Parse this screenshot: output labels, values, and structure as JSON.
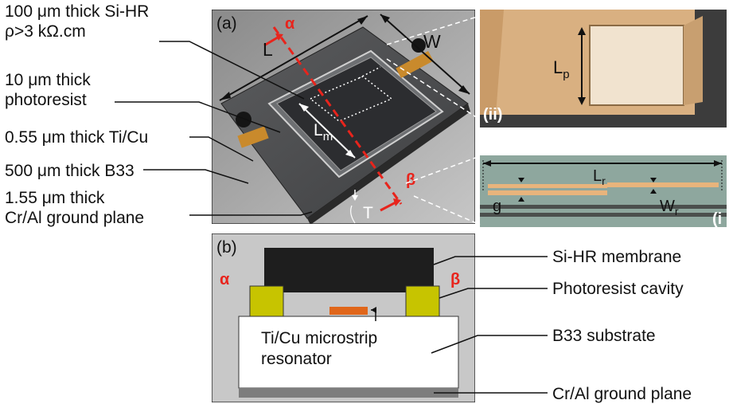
{
  "left_labels": [
    {
      "line1": "100 μm thick Si-HR",
      "line2": "ρ>3 kΩ.cm"
    },
    {
      "line1": "10 μm thick",
      "line2": "photoresist"
    },
    {
      "line1": "0.55 μm thick Ti/Cu",
      "line2": ""
    },
    {
      "line1": "500 μm thick B33",
      "line2": ""
    },
    {
      "line1": "1.55 μm thick",
      "line2": "Cr/Al ground plane"
    }
  ],
  "panel_a": {
    "tag": "(a)",
    "alpha": "α",
    "beta": "β",
    "dim_L": "L",
    "dim_W": "W",
    "dim_Lm": "L",
    "dim_Lm_sub": "m",
    "dim_T": "T"
  },
  "panel_ii": {
    "tag": "(ii)",
    "dim": "L",
    "dim_sub": "p"
  },
  "panel_i": {
    "tag": "(i",
    "dim_L": "L",
    "dim_L_sub": "r",
    "dim_g": "g",
    "dim_W": "W",
    "dim_W_sub": "r"
  },
  "panel_b": {
    "tag": "(b)",
    "alpha": "α",
    "beta": "β",
    "resonator_line1": "Ti/Cu microstrip",
    "resonator_line2": "resonator"
  },
  "right_labels": [
    "Si-HR membrane",
    "Photoresist cavity",
    "B33 substrate",
    "Cr/Al ground plane"
  ],
  "colors": {
    "accent_red": "#e8241c",
    "membrane": "#1e1e1e",
    "cavity": "#c7c400",
    "substrate": "#ffffff",
    "ground": "#7d7d7d",
    "resonator": "#e0661a",
    "panel_bg": "#c8c8c8"
  }
}
